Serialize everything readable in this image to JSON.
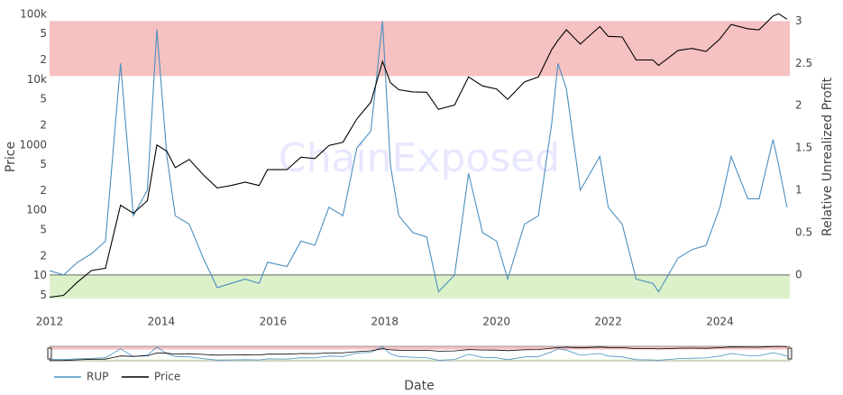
{
  "chart_data": {
    "type": "line",
    "watermark": "ChainExposed",
    "xlabel": "Date",
    "ylabel": "Price",
    "y2label": "Relative Unrealized Profit",
    "ylog": true,
    "legend": "bottom-left",
    "xlim": [
      2012,
      2025.25
    ],
    "xticks": [
      2012,
      2014,
      2016,
      2018,
      2020,
      2022,
      2024
    ],
    "ylim": [
      4.2,
      106000
    ],
    "yticks": [
      {
        "value": 100000,
        "label": "100k"
      },
      {
        "value": 50000,
        "label": "5"
      },
      {
        "value": 20000,
        "label": "2"
      },
      {
        "value": 10000,
        "label": "10k"
      },
      {
        "value": 5000,
        "label": "5"
      },
      {
        "value": 2000,
        "label": "2"
      },
      1000,
      {
        "value": 500,
        "label": "5"
      },
      {
        "value": 200,
        "label": "2"
      },
      100,
      {
        "value": 50,
        "label": "5"
      },
      {
        "value": 20,
        "label": "2"
      },
      10,
      5
    ],
    "y2lim": [
      -0.3,
      3.1
    ],
    "y2ticks": [
      3,
      2.5,
      2,
      1.5,
      1,
      0.5,
      0
    ],
    "bands": [
      {
        "axis": "y2",
        "from": 2.35,
        "to": 3,
        "color": "#f4b6b6"
      },
      {
        "axis": "y2",
        "from": -0.28,
        "to": 0,
        "color": "#d6efc0"
      }
    ],
    "x": [
      2012.0,
      2012.25,
      2012.5,
      2012.75,
      2013.0,
      2013.27,
      2013.5,
      2013.75,
      2013.92,
      2014.1,
      2014.25,
      2014.5,
      2014.75,
      2015.0,
      2015.25,
      2015.5,
      2015.75,
      2015.9,
      2016.25,
      2016.5,
      2016.75,
      2017.0,
      2017.25,
      2017.5,
      2017.75,
      2017.96,
      2018.1,
      2018.25,
      2018.5,
      2018.75,
      2018.96,
      2019.25,
      2019.5,
      2019.75,
      2020.0,
      2020.2,
      2020.5,
      2020.75,
      2020.99,
      2021.1,
      2021.25,
      2021.5,
      2021.85,
      2022.0,
      2022.25,
      2022.5,
      2022.8,
      2022.9,
      2023.25,
      2023.5,
      2023.75,
      2024.0,
      2024.2,
      2024.5,
      2024.7,
      2024.95,
      2025.05,
      2025.2
    ],
    "series": [
      {
        "name": "RUP",
        "color": "#4a90c0",
        "axis": "y2",
        "values": [
          0.05,
          0.0,
          0.15,
          0.25,
          0.4,
          2.5,
          0.7,
          1.0,
          2.9,
          1.4,
          0.7,
          0.6,
          0.2,
          -0.15,
          -0.1,
          -0.05,
          -0.1,
          0.15,
          0.1,
          0.4,
          0.35,
          0.8,
          0.7,
          1.5,
          1.7,
          3.0,
          1.3,
          0.7,
          0.5,
          0.45,
          -0.2,
          0.0,
          1.2,
          0.5,
          0.4,
          -0.05,
          0.6,
          0.7,
          1.8,
          2.5,
          2.2,
          1.0,
          1.4,
          0.8,
          0.6,
          -0.05,
          -0.1,
          -0.2,
          0.2,
          0.3,
          0.35,
          0.8,
          1.4,
          0.9,
          0.9,
          1.6,
          1.3,
          0.8
        ]
      },
      {
        "name": "Price",
        "color": "#000000",
        "values": [
          4.7,
          5,
          8,
          12,
          13,
          120,
          90,
          140,
          1000,
          800,
          450,
          600,
          350,
          220,
          240,
          270,
          240,
          420,
          420,
          650,
          620,
          980,
          1100,
          2500,
          4500,
          19000,
          9000,
          7000,
          6500,
          6400,
          3500,
          4100,
          11000,
          8000,
          7200,
          5000,
          9200,
          11000,
          29000,
          40000,
          58000,
          35000,
          65000,
          46000,
          45000,
          20000,
          20000,
          16500,
          28000,
          30000,
          27000,
          42000,
          70000,
          60000,
          58000,
          94000,
          102000,
          84000
        ]
      }
    ]
  }
}
